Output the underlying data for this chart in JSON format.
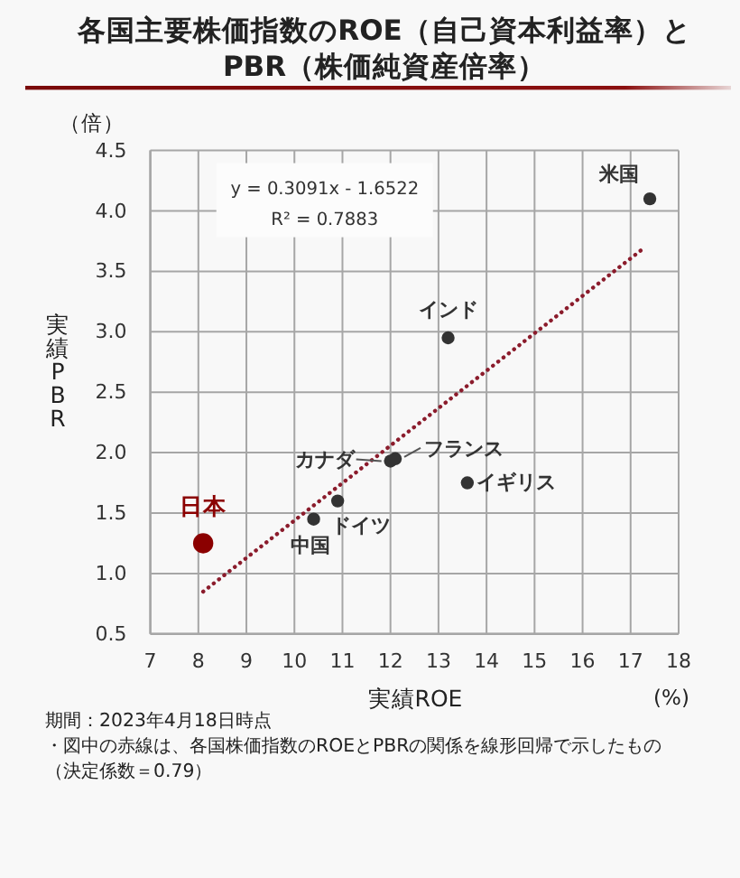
{
  "chart_data": {
    "type": "scatter",
    "title": "各国主要株価指数のROE（自己資本利益率）と\nPBR（株価純資産倍率）",
    "xlabel": "実績ROE",
    "ylabel": "実績PBR",
    "xlim": [
      7,
      18
    ],
    "xticks": [
      7,
      8,
      9,
      10,
      11,
      12,
      13,
      14,
      15,
      16,
      17,
      18
    ],
    "ylim": [
      0.5,
      4.5
    ],
    "yticks": [
      0.5,
      {
        "value": 1,
        "label": "1.0"
      },
      1.5,
      {
        "value": 2,
        "label": "2.0"
      },
      2.5,
      {
        "value": 3,
        "label": "3.0"
      },
      3.5,
      {
        "value": 4,
        "label": "4.0"
      },
      4.5
    ],
    "grid": true,
    "marker": "circle",
    "series": [
      {
        "name": "米国",
        "color": "#333333",
        "x": [
          17.4
        ],
        "values": [
          4.1
        ]
      },
      {
        "name": "インド",
        "color": "#333333",
        "x": [
          13.2
        ],
        "values": [
          2.95
        ]
      },
      {
        "name": "カナダ",
        "color": "#333333",
        "x": [
          12.0
        ],
        "values": [
          1.93
        ]
      },
      {
        "name": "フランス",
        "color": "#333333",
        "x": [
          12.1
        ],
        "values": [
          1.95
        ]
      },
      {
        "name": "ドイツ",
        "color": "#333333",
        "x": [
          10.9
        ],
        "values": [
          1.6
        ]
      },
      {
        "name": "中国",
        "color": "#333333",
        "x": [
          10.4
        ],
        "values": [
          1.45
        ]
      },
      {
        "name": "イギリス",
        "color": "#333333",
        "x": [
          13.6
        ],
        "values": [
          1.75
        ]
      },
      {
        "name": "日本",
        "type": "bubble",
        "color": "#8b0000",
        "x": [
          8.1
        ],
        "values": [
          1.25
        ],
        "sizes": [
          1
        ]
      },
      {
        "type": "line",
        "color": "#8b1c2c",
        "line_style": "dotted",
        "marker": "none",
        "x": [
          8.1,
          17.3
        ],
        "values": [
          0.85,
          3.7
        ]
      }
    ],
    "annotations": [
      "y = 0.3091x - 1.6522\nR² = 0.7883",
      "（倍）",
      "(%)",
      "期間：2023年4月18日時点",
      "・図中の赤線は、各国株価指数のROEとPBRの関係を線形回帰で示したもの",
      "（決定係数＝0.79）"
    ]
  }
}
